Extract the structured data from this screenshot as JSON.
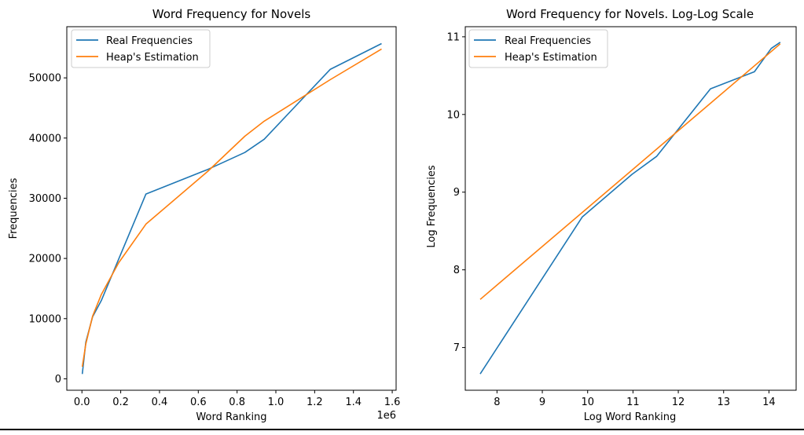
{
  "colors": {
    "real": "#1f77b4",
    "heaps": "#ff7f0e",
    "axis": "#000000",
    "legend_border": "#cccccc"
  },
  "chart_data": [
    {
      "type": "line",
      "title": "Word Frequency for Novels",
      "xlabel": "Word Ranking",
      "ylabel": "Frequencies",
      "x_offset_text": "1e6",
      "xlim": [
        -0.078,
        1.62
      ],
      "ylim": [
        -1900,
        58500
      ],
      "xticks": [
        0.0,
        0.2,
        0.4,
        0.6,
        0.8,
        1.0,
        1.2,
        1.4,
        1.6
      ],
      "xtick_labels": [
        "0.0",
        "0.2",
        "0.4",
        "0.6",
        "0.8",
        "1.0",
        "1.2",
        "1.4",
        "1.6"
      ],
      "yticks": [
        0,
        10000,
        20000,
        30000,
        40000,
        50000
      ],
      "ytick_labels": [
        "0",
        "10000",
        "20000",
        "30000",
        "40000",
        "50000"
      ],
      "legend": "top-left",
      "grid": false,
      "series": [
        {
          "name": "Real Frequencies",
          "x": [
            0.002,
            0.02,
            0.055,
            0.1,
            0.33,
            0.65,
            0.84,
            0.94,
            1.28,
            1.545
          ],
          "y": [
            800,
            6100,
            10300,
            13000,
            30700,
            34800,
            37600,
            39800,
            51400,
            55700
          ]
        },
        {
          "name": "Heap's Estimation",
          "x": [
            0.002,
            0.02,
            0.055,
            0.1,
            0.19,
            0.33,
            0.65,
            0.84,
            0.94,
            1.28,
            1.545
          ],
          "y": [
            2000,
            5800,
            10400,
            14000,
            19300,
            25700,
            34500,
            40300,
            42800,
            49700,
            54800
          ]
        }
      ]
    },
    {
      "type": "line",
      "title": "Word Frequency for Novels. Log-Log Scale",
      "xlabel": "Log Word Ranking",
      "ylabel": "Log Frequencies",
      "xlim": [
        7.3,
        14.6
      ],
      "ylim": [
        6.45,
        11.13
      ],
      "xticks": [
        8,
        9,
        10,
        11,
        12,
        13,
        14
      ],
      "xtick_labels": [
        "8",
        "9",
        "10",
        "11",
        "12",
        "13",
        "14"
      ],
      "yticks": [
        7,
        8,
        9,
        10,
        11
      ],
      "ytick_labels": [
        "7",
        "8",
        "9",
        "10",
        "11"
      ],
      "legend": "top-left",
      "grid": false,
      "series": [
        {
          "name": "Real Frequencies",
          "x": [
            7.63,
            9.88,
            10.98,
            11.52,
            12.71,
            13.68,
            14.05,
            14.25
          ],
          "y": [
            6.66,
            8.68,
            9.23,
            9.46,
            10.33,
            10.55,
            10.85,
            10.93
          ]
        },
        {
          "name": "Heap's Estimation",
          "x": [
            7.63,
            14.25
          ],
          "y": [
            7.62,
            10.91
          ]
        }
      ]
    }
  ]
}
